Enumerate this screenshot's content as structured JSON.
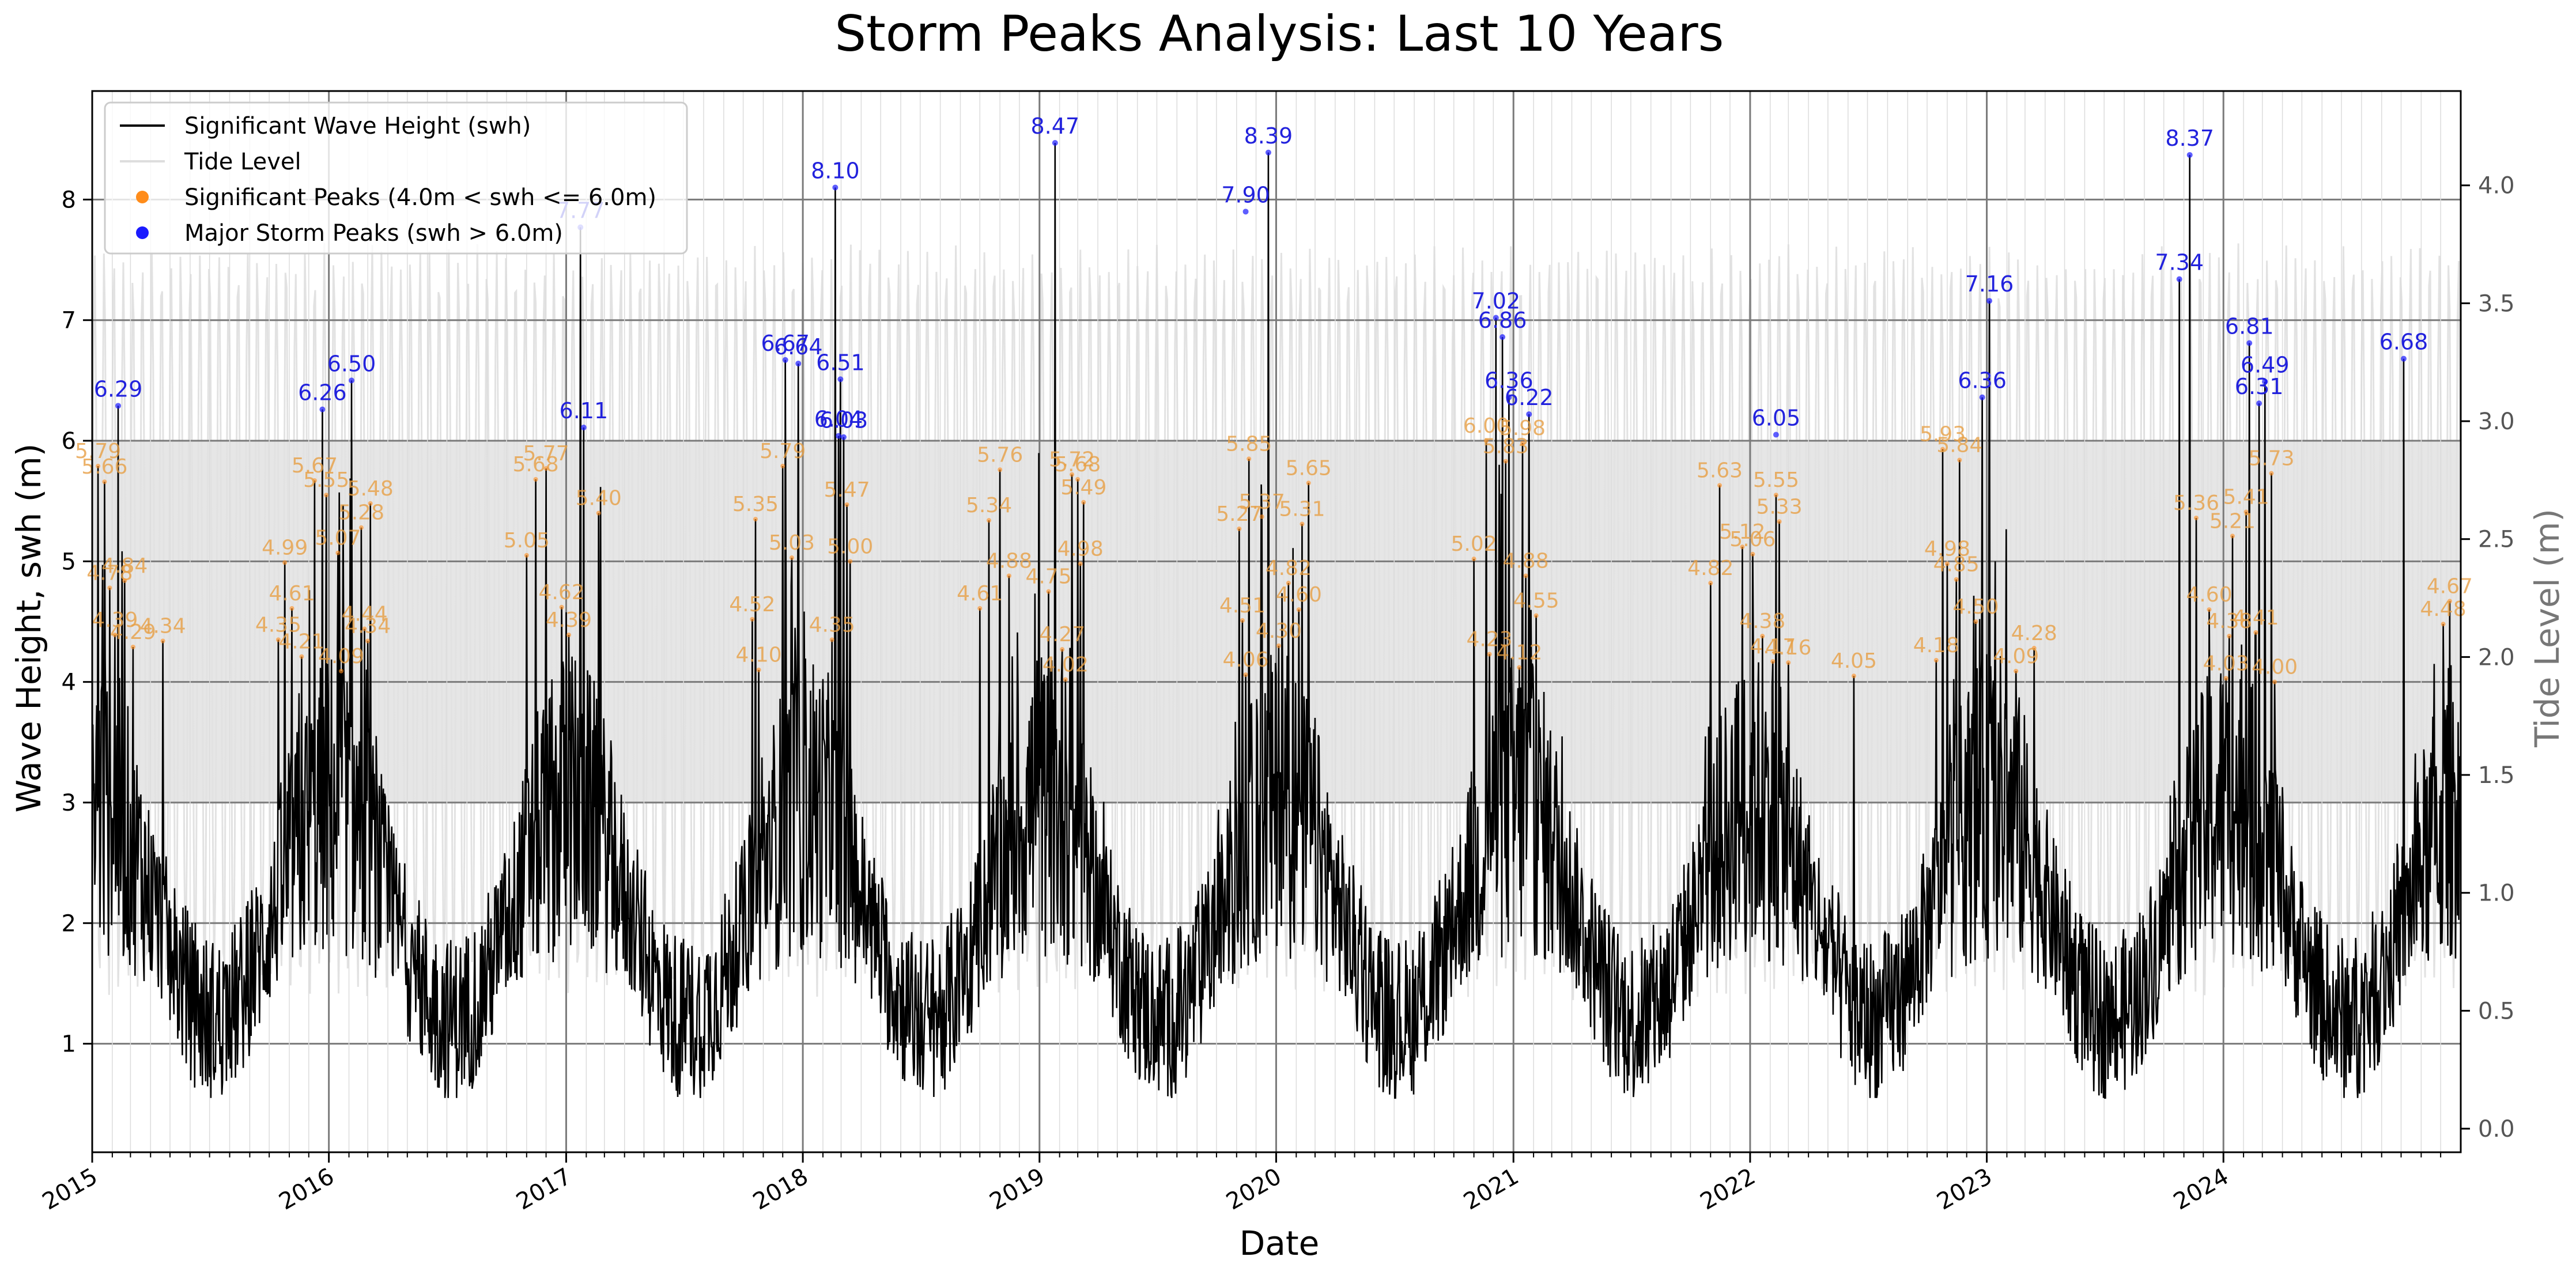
{
  "chart_data": {
    "type": "line",
    "title": "Storm Peaks Analysis: Last 10 Years",
    "xlabel": "Date",
    "ylabel": "Wave Height, swh (m)",
    "ylabel_right": "Tide Level (m)",
    "xlim": [
      "2015-01-01",
      "2025-01-01"
    ],
    "ylim": [
      0.1,
      8.9
    ],
    "ylim_right": [
      -0.1,
      4.4
    ],
    "x_ticks": [
      "2015",
      "2016",
      "2017",
      "2018",
      "2019",
      "2020",
      "2021",
      "2022",
      "2023",
      "2024"
    ],
    "y_ticks": [
      "1",
      "2",
      "3",
      "4",
      "5",
      "6",
      "7",
      "8"
    ],
    "y_ticks_right": [
      "0.0",
      "0.5",
      "1.0",
      "1.5",
      "2.0",
      "2.5",
      "3.0",
      "3.5",
      "4.0"
    ],
    "shaded_band_y": [
      3.0,
      6.0
    ],
    "grid": true,
    "legend": {
      "placement": "top-left",
      "entries": [
        {
          "label": "Significant Wave Height (swh)",
          "color": "#000000",
          "marker": "line"
        },
        {
          "label": "Tide Level",
          "color": "#dddddd",
          "marker": "line"
        },
        {
          "label": "Significant Peaks (4.0m < swh <= 6.0m)",
          "color": "#ff8c1a",
          "marker": "dot"
        },
        {
          "label": "Major Storm Peaks (swh > 6.0m)",
          "color": "#1a1aff",
          "marker": "dot"
        }
      ]
    },
    "series": [
      {
        "name": "Significant Wave Height (swh)",
        "color": "#000000",
        "axis": "left",
        "note_values": "daily swh approx. range 0.6 to 8.47 m, seasonal winter maxima"
      },
      {
        "name": "Tide Level",
        "color": "#dddddd",
        "axis": "right",
        "note_values": "semi-monthly oscillation approx. 0.3 to 4.0 m"
      }
    ],
    "major_peaks": [
      {
        "date": "2015-02-10",
        "value": 6.29,
        "label": "6.29"
      },
      {
        "date": "2015-12-22",
        "value": 6.26,
        "label": "6.26"
      },
      {
        "date": "2016-02-05",
        "value": 6.5,
        "label": "6.50"
      },
      {
        "date": "2017-01-23",
        "value": 7.77,
        "label": "7.77"
      },
      {
        "date": "2017-01-28",
        "value": 6.11,
        "label": "6.11"
      },
      {
        "date": "2017-12-05",
        "value": 6.67,
        "label": "6.67"
      },
      {
        "date": "2017-12-25",
        "value": 6.64,
        "label": "6.64"
      },
      {
        "date": "2018-02-20",
        "value": 8.1,
        "label": "8.10"
      },
      {
        "date": "2018-02-28",
        "value": 6.51,
        "label": "6.51"
      },
      {
        "date": "2018-02-25",
        "value": 6.04,
        "label": "6.04"
      },
      {
        "date": "2018-03-05",
        "value": 6.03,
        "label": "6.03"
      },
      {
        "date": "2019-01-25",
        "value": 8.47,
        "label": "8.47"
      },
      {
        "date": "2019-11-15",
        "value": 7.9,
        "label": "7.90"
      },
      {
        "date": "2019-12-20",
        "value": 8.39,
        "label": "8.39"
      },
      {
        "date": "2020-12-05",
        "value": 7.02,
        "label": "7.02"
      },
      {
        "date": "2020-12-15",
        "value": 6.86,
        "label": "6.86"
      },
      {
        "date": "2020-12-25",
        "value": 6.36,
        "label": "6.36"
      },
      {
        "date": "2021-01-25",
        "value": 6.22,
        "label": "6.22"
      },
      {
        "date": "2022-02-10",
        "value": 6.05,
        "label": "6.05"
      },
      {
        "date": "2022-12-25",
        "value": 6.36,
        "label": "6.36"
      },
      {
        "date": "2023-01-05",
        "value": 7.16,
        "label": "7.16"
      },
      {
        "date": "2023-10-25",
        "value": 7.34,
        "label": "7.34"
      },
      {
        "date": "2023-11-10",
        "value": 8.37,
        "label": "8.37"
      },
      {
        "date": "2024-02-10",
        "value": 6.81,
        "label": "6.81"
      },
      {
        "date": "2024-02-25",
        "value": 6.31,
        "label": "6.31"
      },
      {
        "date": "2024-03-05",
        "value": 6.49,
        "label": "6.49"
      },
      {
        "date": "2024-10-05",
        "value": 6.68,
        "label": "6.68"
      }
    ],
    "significant_peaks": [
      {
        "date": "2015-01-10",
        "value": 5.79,
        "label": "5.79"
      },
      {
        "date": "2015-01-20",
        "value": 5.66,
        "label": "5.66"
      },
      {
        "date": "2015-01-28",
        "value": 4.78,
        "label": "4.78"
      },
      {
        "date": "2015-02-20",
        "value": 4.84,
        "label": "4.84"
      },
      {
        "date": "2015-02-05",
        "value": 4.39,
        "label": "4.39"
      },
      {
        "date": "2015-03-05",
        "value": 4.29,
        "label": "4.29"
      },
      {
        "date": "2015-04-20",
        "value": 4.34,
        "label": "4.34"
      },
      {
        "date": "2015-10-15",
        "value": 4.35,
        "label": "4.35"
      },
      {
        "date": "2015-10-25",
        "value": 4.99,
        "label": "4.99"
      },
      {
        "date": "2015-11-05",
        "value": 4.61,
        "label": "4.61"
      },
      {
        "date": "2015-11-20",
        "value": 4.21,
        "label": "4.21"
      },
      {
        "date": "2015-12-10",
        "value": 5.67,
        "label": "5.67"
      },
      {
        "date": "2015-12-28",
        "value": 5.55,
        "label": "5.55"
      },
      {
        "date": "2016-01-15",
        "value": 5.07,
        "label": "5.07"
      },
      {
        "date": "2016-02-20",
        "value": 5.28,
        "label": "5.28"
      },
      {
        "date": "2016-03-05",
        "value": 5.48,
        "label": "5.48"
      },
      {
        "date": "2016-02-25",
        "value": 4.44,
        "label": "4.44"
      },
      {
        "date": "2016-03-01",
        "value": 4.34,
        "label": "4.34"
      },
      {
        "date": "2016-01-20",
        "value": 4.09,
        "label": "4.09"
      },
      {
        "date": "2016-11-15",
        "value": 5.68,
        "label": "5.68"
      },
      {
        "date": "2016-12-01",
        "value": 5.77,
        "label": "5.77"
      },
      {
        "date": "2016-11-01",
        "value": 5.05,
        "label": "5.05"
      },
      {
        "date": "2016-12-25",
        "value": 4.62,
        "label": "4.62"
      },
      {
        "date": "2017-01-05",
        "value": 4.39,
        "label": "4.39"
      },
      {
        "date": "2017-02-20",
        "value": 5.4,
        "label": "5.40"
      },
      {
        "date": "2017-10-20",
        "value": 5.35,
        "label": "5.35"
      },
      {
        "date": "2017-10-15",
        "value": 4.52,
        "label": "4.52"
      },
      {
        "date": "2017-10-25",
        "value": 4.1,
        "label": "4.10"
      },
      {
        "date": "2017-12-01",
        "value": 5.79,
        "label": "5.79"
      },
      {
        "date": "2017-12-15",
        "value": 5.03,
        "label": "5.03"
      },
      {
        "date": "2018-03-10",
        "value": 5.47,
        "label": "5.47"
      },
      {
        "date": "2018-03-15",
        "value": 5.0,
        "label": "5.00"
      },
      {
        "date": "2018-02-15",
        "value": 4.35,
        "label": "4.35"
      },
      {
        "date": "2018-11-01",
        "value": 5.76,
        "label": "5.76"
      },
      {
        "date": "2018-10-15",
        "value": 5.34,
        "label": "5.34"
      },
      {
        "date": "2018-11-15",
        "value": 4.88,
        "label": "4.88"
      },
      {
        "date": "2018-10-01",
        "value": 4.61,
        "label": "4.61"
      },
      {
        "date": "2019-02-20",
        "value": 5.72,
        "label": "5.72"
      },
      {
        "date": "2019-03-01",
        "value": 5.68,
        "label": "5.68"
      },
      {
        "date": "2019-03-10",
        "value": 5.49,
        "label": "5.49"
      },
      {
        "date": "2019-03-05",
        "value": 4.98,
        "label": "4.98"
      },
      {
        "date": "2019-01-15",
        "value": 4.75,
        "label": "4.75"
      },
      {
        "date": "2019-02-05",
        "value": 4.27,
        "label": "4.27"
      },
      {
        "date": "2019-02-10",
        "value": 4.02,
        "label": "4.02"
      },
      {
        "date": "2019-11-20",
        "value": 5.85,
        "label": "5.85"
      },
      {
        "date": "2019-11-05",
        "value": 5.27,
        "label": "5.27"
      },
      {
        "date": "2019-12-10",
        "value": 5.37,
        "label": "5.37"
      },
      {
        "date": "2020-02-20",
        "value": 5.65,
        "label": "5.65"
      },
      {
        "date": "2020-02-10",
        "value": 5.31,
        "label": "5.31"
      },
      {
        "date": "2020-01-20",
        "value": 4.82,
        "label": "4.82"
      },
      {
        "date": "2020-02-05",
        "value": 4.6,
        "label": "4.60"
      },
      {
        "date": "2019-11-10",
        "value": 4.51,
        "label": "4.51"
      },
      {
        "date": "2020-01-05",
        "value": 4.3,
        "label": "4.30"
      },
      {
        "date": "2019-11-15",
        "value": 4.06,
        "label": "4.06"
      },
      {
        "date": "2020-11-20",
        "value": 6.0,
        "label": "6.00"
      },
      {
        "date": "2020-12-20",
        "value": 5.83,
        "label": "5.83"
      },
      {
        "date": "2021-01-15",
        "value": 5.98,
        "label": "5.98"
      },
      {
        "date": "2020-11-01",
        "value": 5.02,
        "label": "5.02"
      },
      {
        "date": "2021-01-20",
        "value": 4.88,
        "label": "4.88"
      },
      {
        "date": "2021-02-05",
        "value": 4.55,
        "label": "4.55"
      },
      {
        "date": "2020-11-25",
        "value": 4.23,
        "label": "4.23"
      },
      {
        "date": "2021-01-10",
        "value": 4.12,
        "label": "4.12"
      },
      {
        "date": "2021-11-15",
        "value": 5.63,
        "label": "5.63"
      },
      {
        "date": "2022-02-10",
        "value": 5.55,
        "label": "5.55"
      },
      {
        "date": "2022-02-15",
        "value": 5.33,
        "label": "5.33"
      },
      {
        "date": "2021-12-20",
        "value": 5.12,
        "label": "5.12"
      },
      {
        "date": "2022-01-05",
        "value": 5.06,
        "label": "5.06"
      },
      {
        "date": "2021-11-01",
        "value": 4.82,
        "label": "4.82"
      },
      {
        "date": "2022-01-20",
        "value": 4.38,
        "label": "4.38"
      },
      {
        "date": "2022-02-05",
        "value": 4.17,
        "label": "4.17"
      },
      {
        "date": "2022-03-01",
        "value": 4.16,
        "label": "4.16"
      },
      {
        "date": "2022-06-10",
        "value": 4.05,
        "label": "4.05"
      },
      {
        "date": "2022-10-25",
        "value": 5.93,
        "label": "5.93"
      },
      {
        "date": "2022-11-20",
        "value": 5.84,
        "label": "5.84"
      },
      {
        "date": "2022-11-01",
        "value": 4.98,
        "label": "4.98"
      },
      {
        "date": "2022-11-15",
        "value": 4.85,
        "label": "4.85"
      },
      {
        "date": "2022-12-15",
        "value": 4.5,
        "label": "4.50"
      },
      {
        "date": "2022-10-15",
        "value": 4.18,
        "label": "4.18"
      },
      {
        "date": "2023-03-15",
        "value": 4.28,
        "label": "4.28"
      },
      {
        "date": "2023-02-15",
        "value": 4.09,
        "label": "4.09"
      },
      {
        "date": "2023-11-20",
        "value": 5.36,
        "label": "5.36"
      },
      {
        "date": "2023-12-10",
        "value": 4.6,
        "label": "4.60"
      },
      {
        "date": "2024-01-10",
        "value": 4.38,
        "label": "4.38"
      },
      {
        "date": "2024-01-05",
        "value": 4.03,
        "label": "4.03"
      },
      {
        "date": "2024-01-15",
        "value": 5.21,
        "label": "5.21"
      },
      {
        "date": "2024-02-05",
        "value": 5.41,
        "label": "5.41"
      },
      {
        "date": "2024-03-15",
        "value": 5.73,
        "label": "5.73"
      },
      {
        "date": "2024-02-20",
        "value": 4.41,
        "label": "4.41"
      },
      {
        "date": "2024-03-20",
        "value": 4.0,
        "label": "4.00"
      },
      {
        "date": "2024-12-15",
        "value": 4.67,
        "label": "4.67"
      },
      {
        "date": "2024-12-05",
        "value": 4.48,
        "label": "4.48"
      }
    ]
  }
}
